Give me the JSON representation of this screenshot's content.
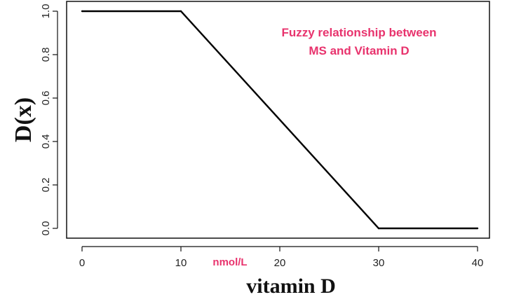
{
  "chart_data": {
    "type": "line",
    "series": [
      {
        "x": [
          0,
          10,
          30,
          40
        ],
        "y": [
          1.0,
          1.0,
          0.0,
          0.0
        ]
      }
    ],
    "xlim": [
      0,
      40
    ],
    "ylim": [
      0,
      1
    ],
    "xticks": [
      0,
      10,
      20,
      30,
      40
    ],
    "yticks": [
      0.0,
      0.2,
      0.4,
      0.6,
      0.8,
      1.0
    ],
    "xtick_labels": [
      "0",
      "10",
      "20",
      "30",
      "40"
    ],
    "ytick_labels": [
      "0.0",
      "0.2",
      "0.4",
      "0.6",
      "0.8",
      "1.0"
    ],
    "xlabel": "vitamin D",
    "ylabel": "D(x)",
    "x_unit": "nmol/L",
    "annotation": [
      "Fuzzy relationship between",
      "MS and Vitamin D"
    ],
    "grid": false,
    "line_color": "#000000",
    "annotation_color": "#e8336d"
  }
}
